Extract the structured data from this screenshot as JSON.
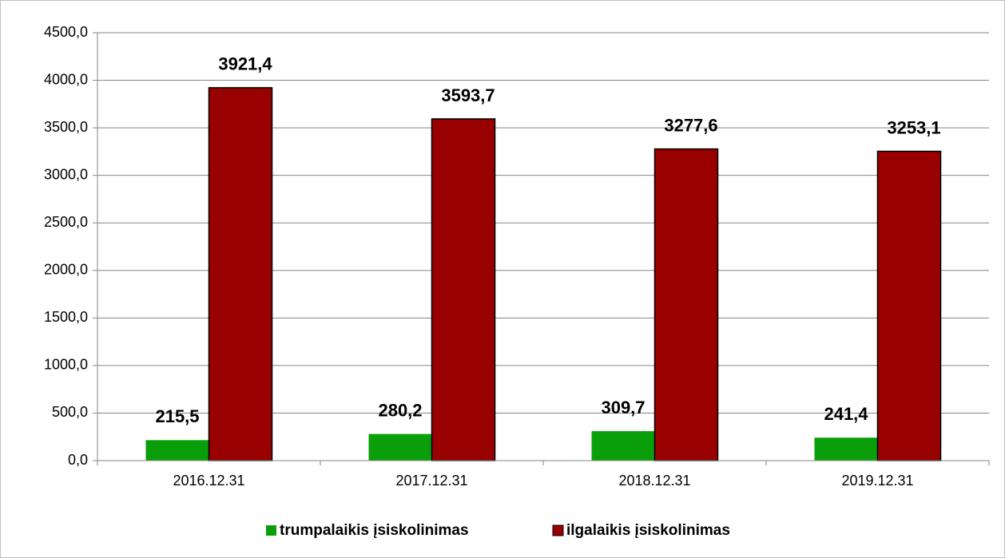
{
  "chart_data": {
    "type": "bar",
    "categories": [
      "2016.12.31",
      "2017.12.31",
      "2018.12.31",
      "2019.12.31"
    ],
    "series": [
      {
        "name": "trumpalaikis įsiskolinimas",
        "color": "#0a9e0a",
        "values": [
          215.5,
          280.2,
          309.7,
          241.4
        ],
        "value_labels": [
          "215,5",
          "280,2",
          "309,7",
          "241,4"
        ]
      },
      {
        "name": "ilgalaikis įsiskolinimas",
        "color": "#990000",
        "values": [
          3921.4,
          3593.7,
          3277.6,
          3253.1
        ],
        "value_labels": [
          "3921,4",
          "3593,7",
          "3277,6",
          "3253,1"
        ]
      }
    ],
    "ylim": [
      0,
      4500
    ],
    "yticks": [
      {
        "value": 0,
        "label": "0,0"
      },
      {
        "value": 500,
        "label": "500,0"
      },
      {
        "value": 1000,
        "label": "1000,0"
      },
      {
        "value": 1500,
        "label": "1500,0"
      },
      {
        "value": 2000,
        "label": "2000,0"
      },
      {
        "value": 2500,
        "label": "2500,0"
      },
      {
        "value": 3000,
        "label": "3000,0"
      },
      {
        "value": 3500,
        "label": "3500,0"
      },
      {
        "value": 4000,
        "label": "4000,0"
      },
      {
        "value": 4500,
        "label": "4500,0"
      }
    ],
    "grid": true,
    "legend": "bottom"
  }
}
